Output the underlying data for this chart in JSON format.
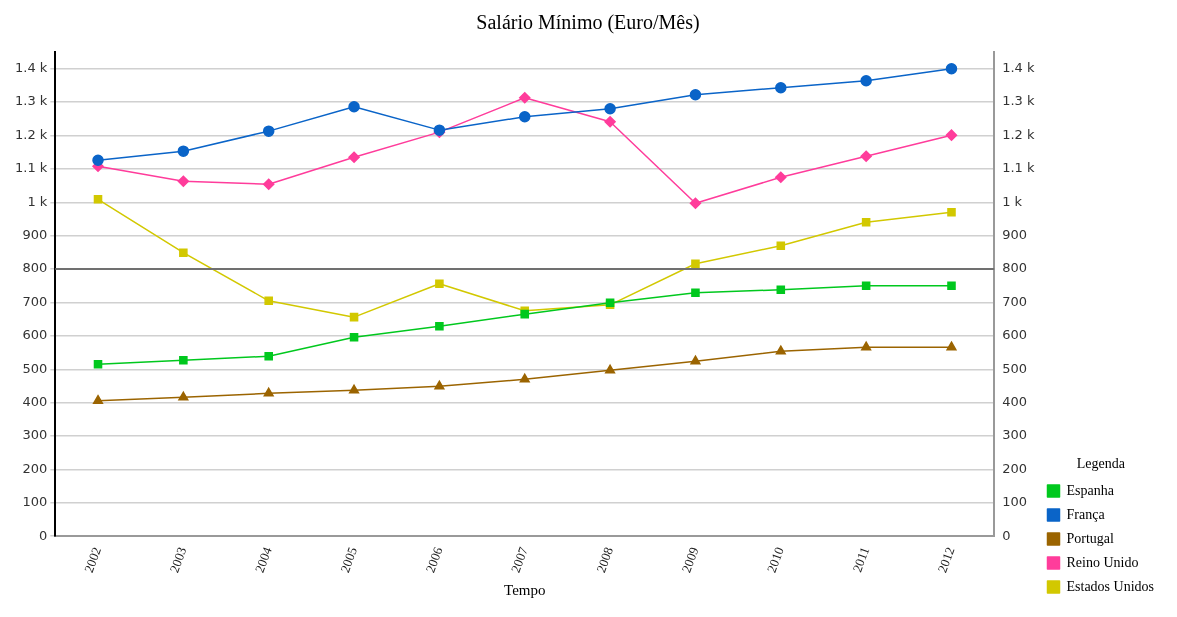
{
  "chart_data": {
    "type": "line",
    "title": "Salário Mínimo (Euro/Mês)",
    "xlabel": "Tempo",
    "legend_title": "Legenda",
    "categories": [
      "2002",
      "2003",
      "2004",
      "2005",
      "2006",
      "2007",
      "2008",
      "2009",
      "2010",
      "2011",
      "2012"
    ],
    "series": [
      {
        "name": "Espanha",
        "color": "#00c81e",
        "marker": "square",
        "values": [
          515,
          527,
          539,
          596,
          629,
          665,
          699,
          729,
          738,
          750,
          750
        ]
      },
      {
        "name": "França",
        "color": "#0a64c8",
        "marker": "circle",
        "values": [
          1126,
          1153,
          1213,
          1286,
          1216,
          1256,
          1280,
          1322,
          1343,
          1364,
          1400
        ]
      },
      {
        "name": "Portugal",
        "color": "#9b6400",
        "marker": "triangle",
        "values": [
          406,
          416,
          428,
          437,
          449,
          470,
          497,
          524,
          554,
          566,
          566
        ]
      },
      {
        "name": "Reino Unido",
        "color": "#ff3c9b",
        "marker": "diamond",
        "values": [
          1108,
          1063,
          1054,
          1135,
          1210,
          1313,
          1241,
          997,
          1075,
          1138,
          1201
        ]
      },
      {
        "name": "Estados Unidos",
        "color": "#d2c800",
        "marker": "square",
        "values": [
          1009,
          849,
          705,
          656,
          756,
          675,
          693,
          816,
          870,
          940,
          970
        ]
      }
    ],
    "ylim": [
      0,
      1450
    ],
    "yticks": [
      0,
      100,
      200,
      300,
      400,
      500,
      600,
      700,
      800,
      900,
      {
        "value": 1000,
        "label": "1 k"
      },
      {
        "value": 1100,
        "label": "1.1 k"
      },
      {
        "value": 1200,
        "label": "1.2 k"
      },
      {
        "value": 1300,
        "label": "1.3 k"
      },
      {
        "value": 1400,
        "label": "1.4 k"
      }
    ],
    "y2lim": [
      0,
      1450
    ],
    "y2ticks": [
      0,
      100,
      200,
      300,
      400,
      500,
      600,
      700,
      800,
      900,
      {
        "value": 1000,
        "label": "1 k"
      },
      {
        "value": 1100,
        "label": "1.1 k"
      },
      {
        "value": 1200,
        "label": "1.2 k"
      },
      {
        "value": 1300,
        "label": "1.3 k"
      },
      {
        "value": 1400,
        "label": "1.4 k"
      }
    ],
    "ref_lines": [
      {
        "axis": "y",
        "value": 800,
        "color": "#707070"
      }
    ],
    "grid": "y",
    "legend": "bottom right",
    "line_style": "solid"
  }
}
